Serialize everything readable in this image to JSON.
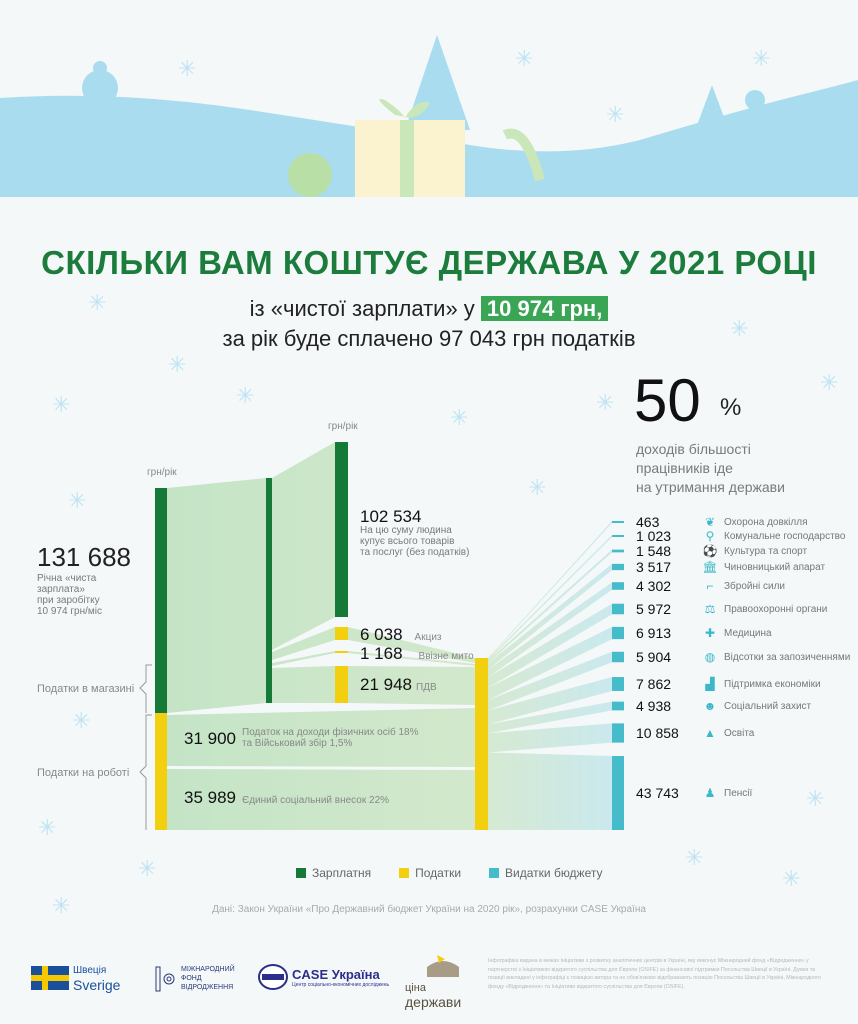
{
  "header": {
    "title": "СКІЛЬКИ ВАМ КОШТУЄ ДЕРЖАВА У 2021 РОЦІ",
    "subtitle_prefix": "із «чистої зарплати» у",
    "subtitle_highlight": "10 974 грн,",
    "subtitle_line2": "за рік буде сплачено 97 043 грн податків"
  },
  "share": {
    "value": "50",
    "unit": "%",
    "text_lines": [
      "доходів більшості",
      "працівників іде",
      "на утримання держави"
    ]
  },
  "colors": {
    "salary": "#157a38",
    "taxes": "#f2d00f",
    "budget": "#46bccb",
    "title": "#1c7c3c"
  },
  "units": {
    "left": "грн/рік",
    "mid": "грн/рік"
  },
  "income": {
    "value": "131 688",
    "lines": [
      "Річна «чиста",
      "зарплата»",
      "при заробітку",
      "10 974 грн/міс"
    ]
  },
  "spend": {
    "value": "102 534",
    "lines": [
      "На цю суму людина",
      "купує всього товарів",
      "та послуг (без податків)"
    ]
  },
  "groups": {
    "shop": "Податки в магазині",
    "work": "Податки на роботі"
  },
  "taxes": [
    {
      "value": "6 038",
      "label": "Акциз",
      "amount": 6038
    },
    {
      "value": "1 168",
      "label": "Ввізне мито",
      "amount": 1168
    },
    {
      "value": "21 948",
      "label": "ПДВ",
      "amount": 21948
    },
    {
      "value": "31 900",
      "label": "Податок на доходи фізичних осіб 18%",
      "label2": "та Військовий збір 1,5%",
      "amount": 31900
    },
    {
      "value": "35 989",
      "label": "Єдиний соціальний внесок 22%",
      "amount": 35989
    }
  ],
  "budget": [
    {
      "value": "463",
      "label": "Охорона довкілля",
      "icon": "leaf",
      "amount": 463
    },
    {
      "value": "1 023",
      "label": "Комунальне господарство",
      "icon": "tap",
      "amount": 1023
    },
    {
      "value": "1 548",
      "label": "Культура та спорт",
      "icon": "ball",
      "amount": 1548
    },
    {
      "value": "3 517",
      "label": "Чиновницький апарат",
      "icon": "government-building",
      "amount": 3517
    },
    {
      "value": "4 302",
      "label": "Збройні сили",
      "icon": "rifle",
      "amount": 4302
    },
    {
      "value": "5 972",
      "label": "Правоохоронні органи",
      "icon": "scales",
      "amount": 5972
    },
    {
      "value": "6 913",
      "label": "Медицина",
      "icon": "medical-cross",
      "amount": 6913
    },
    {
      "value": "5 904",
      "label": "Відсотки за запозиченнями",
      "icon": "coin-hand",
      "amount": 5904
    },
    {
      "value": "7 862",
      "label": "Підтримка економіки",
      "icon": "bar-chart",
      "amount": 7862
    },
    {
      "value": "4 938",
      "label": "Соціальний захист",
      "icon": "people-hand",
      "amount": 4938
    },
    {
      "value": "10 858",
      "label": "Освіта",
      "icon": "graduation-cap",
      "amount": 10858
    },
    {
      "value": "43 743",
      "label": "Пенсії",
      "icon": "person",
      "amount": 43743
    }
  ],
  "legend": [
    "Зарплатня",
    "Податки",
    "Видатки бюджету"
  ],
  "source": "Дані: Закон України «Про Державний бюджет України на 2020 рік», розрахунки CASE Україна",
  "footer": {
    "sweden": [
      "Швеція",
      "Sverige"
    ],
    "irf": [
      "МІЖНАРОДНИЙ",
      "ФОНД",
      "ВІДРОДЖЕННЯ"
    ],
    "case": "CASE Україна",
    "case_sub": "Центр соціально-економічних досліджень",
    "tsina": [
      "ціна",
      "держави"
    ],
    "disclaimer": "Інфографіка видана в межах Ініціативи з розвитку аналітичних центрів в Україні, яку виконує Міжнародний фонд «Відродження» у партнерстві з Ініціативою відкритого суспільства для Європи (OSIFE) за фінансової підтримки Посольства Швеції в Україні. Думки та позиції викладені у інфографіці є позицією автора та не обов'язково відображають позицію Посольства Швеції в Україні, Міжнародного фонду «Відродження» та Ініціативи відкритого суспільства для Європи (OSIFE)."
  }
}
